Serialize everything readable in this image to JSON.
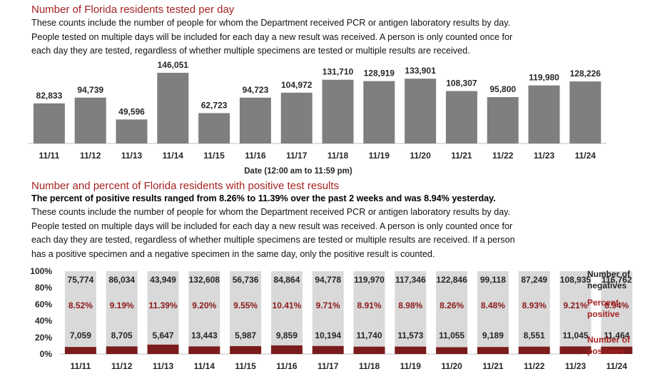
{
  "chart1": {
    "title": "Number of Florida residents tested per day",
    "description_lines": [
      "These counts include the number of people for whom the Department received PCR or antigen laboratory results by day.",
      "People tested on multiple days will be included for each day a new result was received. A person is only counted once for",
      "each day they are tested, regardless of whether multiple specimens are tested or multiple results are received."
    ],
    "xlabel": "Date (12:00 am to 11:59 pm)"
  },
  "chart2": {
    "title": "Number and percent of Florida residents with positive test results",
    "summary": "The percent of positive results ranged from 8.26% to 11.39% over the past 2 weeks and was 8.94% yesterday.",
    "description_lines": [
      "These counts include the number of people for whom the Department received PCR or antigen laboratory results by day.",
      "People tested on multiple days will be included for each day a new result was received. A person is only counted once for",
      "each day they are tested, regardless of whether multiple specimens are tested or multiple results are received. If a person",
      "has a positive specimen and a negative specimen in the same day, only the positive result is counted."
    ],
    "legend": {
      "negatives": [
        "Number of",
        "negatives"
      ],
      "percent": [
        "Percent",
        "positive"
      ],
      "positives": [
        "Number of",
        "positives"
      ]
    }
  },
  "colors": {
    "title": "#a52222",
    "bar_gray": "#7f7f7f",
    "negative_fill": "#d9d9d9",
    "positive_fill": "#7b1c1c",
    "percent_text": "#8b1a1a",
    "legend_text": "#a52222"
  },
  "chart_data": [
    {
      "type": "bar",
      "title": "Number of Florida residents tested per day",
      "xlabel": "Date (12:00 am to 11:59 pm)",
      "ylabel": "",
      "categories": [
        "11/11",
        "11/12",
        "11/13",
        "11/14",
        "11/15",
        "11/16",
        "11/17",
        "11/18",
        "11/19",
        "11/20",
        "11/21",
        "11/22",
        "11/23",
        "11/24"
      ],
      "values": [
        82833,
        94739,
        49596,
        146051,
        62723,
        94723,
        104972,
        131710,
        128919,
        133901,
        108307,
        95800,
        119980,
        128226
      ],
      "labels": [
        "82,833",
        "94,739",
        "49,596",
        "146,051",
        "62,723",
        "94,723",
        "104,972",
        "131,710",
        "128,919",
        "133,901",
        "108,307",
        "95,800",
        "119,980",
        "128,226"
      ],
      "ylim": [
        0,
        146051
      ],
      "grid": false
    },
    {
      "type": "bar",
      "stacked": "percent",
      "title": "Number and percent of Florida residents with positive test results",
      "categories": [
        "11/11",
        "11/12",
        "11/13",
        "11/14",
        "11/15",
        "11/16",
        "11/17",
        "11/18",
        "11/19",
        "11/20",
        "11/21",
        "11/22",
        "11/23",
        "11/24"
      ],
      "yticks": [
        "0%",
        "20%",
        "40%",
        "60%",
        "80%",
        "100%"
      ],
      "ylim": [
        0,
        100
      ],
      "series": [
        {
          "name": "Number of negatives",
          "values": [
            75774,
            86034,
            43949,
            132608,
            56736,
            84864,
            94778,
            119970,
            117346,
            122846,
            99118,
            87249,
            108935,
            116762
          ],
          "labels": [
            "75,774",
            "86,034",
            "43,949",
            "132,608",
            "56,736",
            "84,864",
            "94,778",
            "119,970",
            "117,346",
            "122,846",
            "99,118",
            "87,249",
            "108,935",
            "116,762"
          ]
        },
        {
          "name": "Number of positives",
          "values": [
            7059,
            8705,
            5647,
            13443,
            5987,
            9859,
            10194,
            11740,
            11573,
            11055,
            9189,
            8551,
            11045,
            11464
          ],
          "labels": [
            "7,059",
            "8,705",
            "5,647",
            "13,443",
            "5,987",
            "9,859",
            "10,194",
            "11,740",
            "11,573",
            "11,055",
            "9,189",
            "8,551",
            "11,045",
            "11,464"
          ]
        },
        {
          "name": "Percent positive",
          "values": [
            8.52,
            9.19,
            11.39,
            9.2,
            9.55,
            10.41,
            9.71,
            8.91,
            8.98,
            8.26,
            8.48,
            8.93,
            9.21,
            8.94
          ],
          "labels": [
            "8.52%",
            "9.19%",
            "11.39%",
            "9.20%",
            "9.55%",
            "10.41%",
            "9.71%",
            "8.91%",
            "8.98%",
            "8.26%",
            "8.48%",
            "8.93%",
            "9.21%",
            "8.94%"
          ]
        }
      ]
    }
  ]
}
